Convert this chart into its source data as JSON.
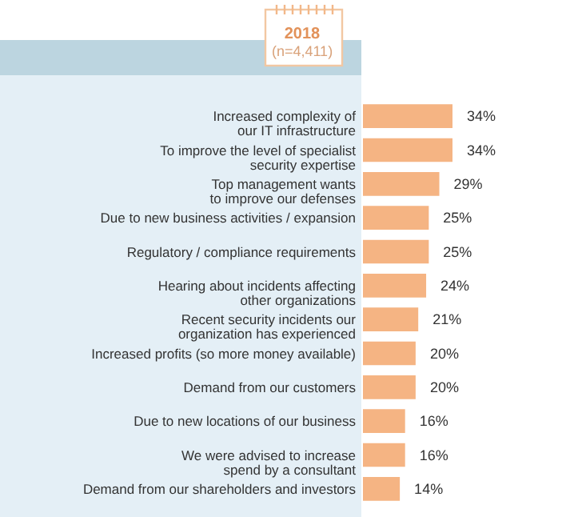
{
  "chart_data": {
    "type": "bar",
    "orientation": "horizontal",
    "title": "2018",
    "subtitle": "(n=4,411)",
    "categories": [
      "Increased complexity of\nour IT infrastructure",
      "To improve the level of specialist\nsecurity expertise",
      "Top management wants\nto improve our defenses",
      "Due to new business activities / expansion",
      "Regulatory / compliance requirements",
      "Hearing about incidents affecting\nother organizations",
      "Recent security incidents our\norganization has experienced",
      "Increased profits (so more money available)",
      "Demand from our customers",
      "Due to new locations of our business",
      "We were advised to increase\nspend by a consultant",
      "Demand from our shareholders and investors"
    ],
    "values": [
      34,
      34,
      29,
      25,
      25,
      24,
      21,
      20,
      20,
      16,
      16,
      14
    ],
    "value_labels": [
      "34%",
      "34%",
      "29%",
      "25%",
      "25%",
      "24%",
      "21%",
      "20%",
      "20%",
      "16%",
      "16%",
      "14%"
    ],
    "color": "#f5b483"
  }
}
